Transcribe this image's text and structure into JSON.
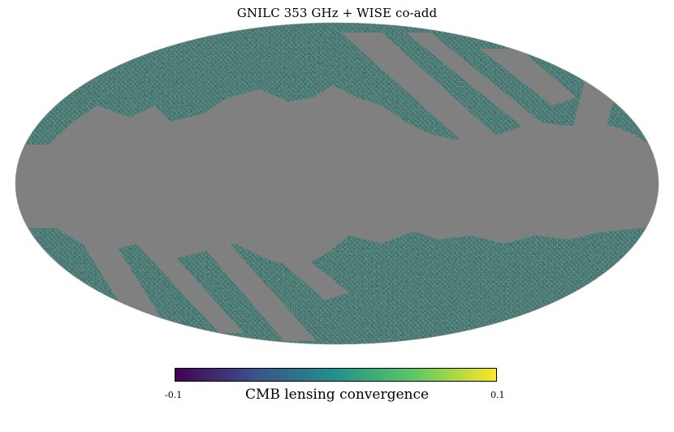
{
  "title": "GNILC 353 GHz + WISE co-add",
  "colorbar": {
    "label": "CMB lensing convergence",
    "min_label": "-0.1",
    "max_label": "0.1",
    "min": -0.1,
    "max": 0.1,
    "colormap": "viridis",
    "colors": [
      "#440154",
      "#3b528b",
      "#21918c",
      "#5ec962",
      "#fde725"
    ]
  },
  "map": {
    "projection": "Mollweide",
    "masked_color": "#808080"
  }
}
